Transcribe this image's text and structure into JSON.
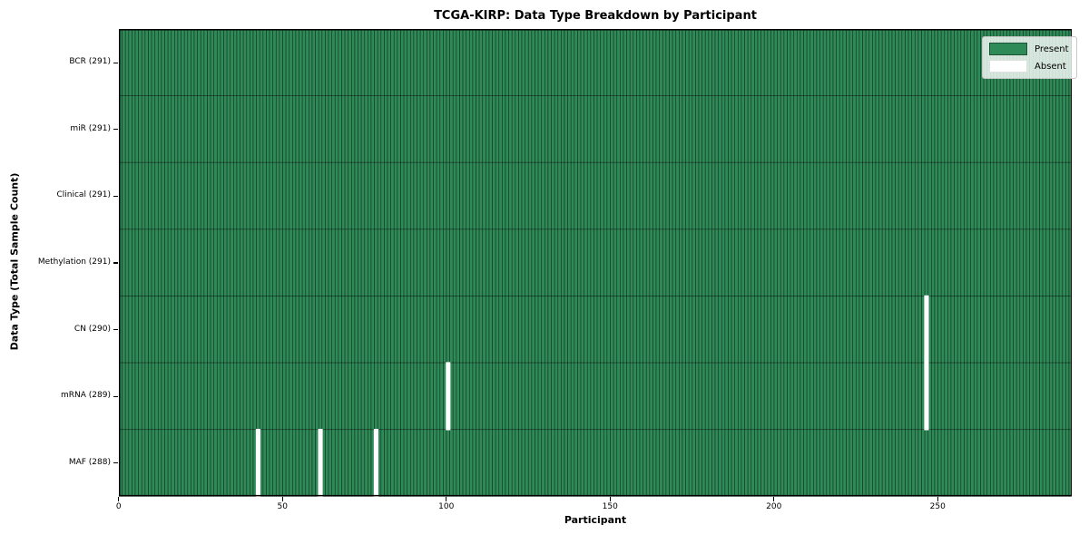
{
  "chart_data": {
    "type": "heatmap",
    "title": "TCGA-KIRP: Data Type Breakdown by Participant",
    "xlabel": "Participant",
    "ylabel": "Data Type (Total Sample Count)",
    "n_participants": 291,
    "x_range": [
      0,
      291
    ],
    "x_ticks": [
      0,
      50,
      100,
      150,
      200,
      250
    ],
    "grid": "cell-edges",
    "legend": {
      "position": "upper-right",
      "present_label": "Present",
      "absent_label": "Absent"
    },
    "colors": {
      "present": "#2e8b57",
      "absent": "#ffffff",
      "cell_edge": "rgba(0,0,0,0.5)",
      "plot_border": "#000000"
    },
    "rows": [
      {
        "label": "BCR",
        "total": 291,
        "tick_label": "BCR (291)",
        "absent_participants": []
      },
      {
        "label": "miR",
        "total": 291,
        "tick_label": "miR (291)",
        "absent_participants": []
      },
      {
        "label": "Clinical",
        "total": 291,
        "tick_label": "Clinical (291)",
        "absent_participants": []
      },
      {
        "label": "Methylation",
        "total": 291,
        "tick_label": "Methylation (291)",
        "absent_participants": []
      },
      {
        "label": "CN",
        "total": 290,
        "tick_label": "CN (290)",
        "absent_participants": [
          246
        ]
      },
      {
        "label": "mRNA",
        "total": 289,
        "tick_label": "mRNA (289)",
        "absent_participants": [
          100,
          246
        ]
      },
      {
        "label": "MAF",
        "total": 288,
        "tick_label": "MAF (288)",
        "absent_participants": [
          42,
          61,
          78
        ]
      }
    ]
  }
}
